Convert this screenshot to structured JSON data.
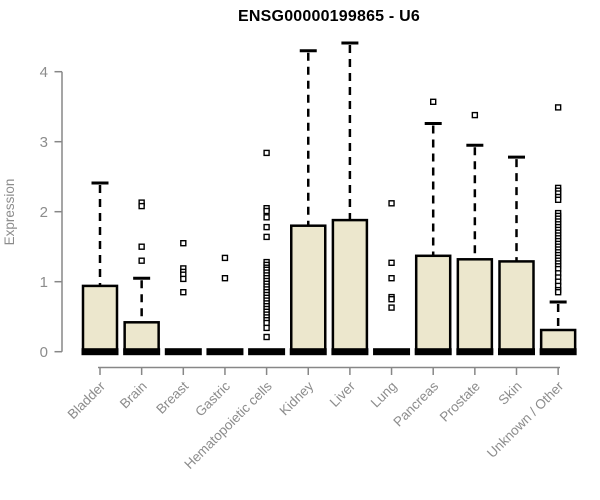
{
  "chart_data": {
    "type": "boxplot",
    "title": "ENSG00000199865 - U6",
    "ylabel": "Expression",
    "xlabel": "",
    "ylim": [
      0,
      4.45
    ],
    "yticks": [
      0,
      1,
      2,
      3,
      4
    ],
    "grid": false,
    "legend": "none",
    "categories": [
      "Bladder",
      "Brain",
      "Breast",
      "Gastric",
      "Hematopoietic cells",
      "Kidney",
      "Liver",
      "Lung",
      "Pancreas",
      "Prostate",
      "Skin",
      "Unknown / Other"
    ],
    "series": [
      {
        "category": "Bladder",
        "low": 0,
        "q1": 0,
        "median": 0,
        "q3": 0.94,
        "high": 2.41,
        "outliers": []
      },
      {
        "category": "Brain",
        "low": 0,
        "q1": 0,
        "median": 0,
        "q3": 0.42,
        "high": 1.05,
        "outliers": [
          2.13,
          2.08,
          1.5,
          1.3
        ]
      },
      {
        "category": "Breast",
        "low": 0,
        "q1": 0,
        "median": 0,
        "q3": 0,
        "high": 0,
        "outliers": [
          1.55,
          1.19,
          1.14,
          1.1,
          1.04,
          0.85
        ]
      },
      {
        "category": "Gastric",
        "low": 0,
        "q1": 0,
        "median": 0,
        "q3": 0,
        "high": 0,
        "outliers": [
          1.34,
          1.05
        ]
      },
      {
        "category": "Hematopoietic cells",
        "low": 0,
        "q1": 0,
        "median": 0,
        "q3": 0,
        "high": 0,
        "outliers": [
          2.84,
          2.05,
          2.01,
          1.92,
          1.78,
          1.64,
          1.28,
          1.24,
          1.2,
          1.17,
          1.13,
          1.09,
          1.05,
          1.01,
          0.97,
          0.93,
          0.89,
          0.85,
          0.81,
          0.77,
          0.73,
          0.69,
          0.65,
          0.61,
          0.57,
          0.53,
          0.49,
          0.45,
          0.41,
          0.34,
          0.21
        ]
      },
      {
        "category": "Kidney",
        "low": 0,
        "q1": 0,
        "median": 0,
        "q3": 1.8,
        "high": 4.3,
        "outliers": []
      },
      {
        "category": "Liver",
        "low": 0,
        "q1": 0,
        "median": 0,
        "q3": 1.88,
        "high": 4.41,
        "outliers": []
      },
      {
        "category": "Lung",
        "low": 0,
        "q1": 0,
        "median": 0,
        "q3": 0,
        "high": 0,
        "outliers": [
          2.12,
          1.27,
          1.05,
          0.78,
          0.75,
          0.63
        ]
      },
      {
        "category": "Pancreas",
        "low": 0,
        "q1": 0,
        "median": 0,
        "q3": 1.37,
        "high": 3.26,
        "outliers": [
          3.57
        ]
      },
      {
        "category": "Prostate",
        "low": 0,
        "q1": 0,
        "median": 0,
        "q3": 1.32,
        "high": 2.95,
        "outliers": [
          3.38
        ]
      },
      {
        "category": "Skin",
        "low": 0,
        "q1": 0,
        "median": 0,
        "q3": 1.29,
        "high": 2.78,
        "outliers": []
      },
      {
        "category": "Unknown / Other",
        "low": 0,
        "q1": 0,
        "median": 0,
        "q3": 0.31,
        "high": 0.71,
        "outliers": [
          3.49,
          2.34,
          2.3,
          2.26,
          2.21,
          2.17,
          1.98,
          1.94,
          1.9,
          1.86,
          1.82,
          1.78,
          1.74,
          1.7,
          1.66,
          1.62,
          1.58,
          1.54,
          1.5,
          1.46,
          1.42,
          1.38,
          1.34,
          1.3,
          1.26,
          1.22,
          1.18,
          1.12,
          1.06,
          1.0,
          0.94,
          0.88,
          0.85
        ]
      }
    ],
    "colors": {
      "box_fill": "#ece7cd",
      "box_stroke": "#000000",
      "axis": "#878787",
      "tick_label": "#8c8c8c",
      "title": "#000000"
    }
  }
}
